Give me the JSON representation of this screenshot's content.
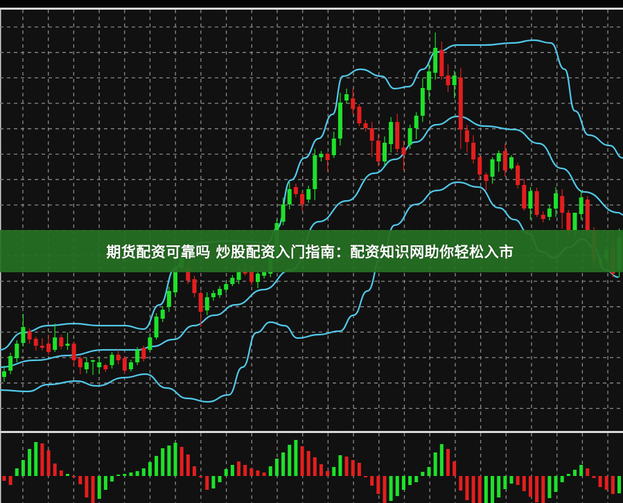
{
  "banner": {
    "title": "期货配资可靠吗 炒股配资入门指南：配资知识网助你轻松入市"
  },
  "colors": {
    "background": "#111111",
    "up": "#1ee12a",
    "down": "#e41e1e",
    "band": "#52c9ea",
    "grid": "#8a8a8a",
    "banner": "#267022"
  },
  "chart_data": [
    {
      "type": "candlestick",
      "title": "",
      "grid": true,
      "ylim": [
        0,
        610
      ],
      "candles": [
        [
          76,
          92,
          69,
          84
        ],
        [
          85,
          111,
          80,
          106
        ],
        [
          103,
          129,
          97,
          124
        ],
        [
          125,
          167,
          120,
          148
        ],
        [
          142,
          146,
          124,
          130
        ],
        [
          131,
          134,
          114,
          121
        ],
        [
          121,
          132,
          114,
          118
        ],
        [
          124,
          137,
          108,
          112
        ],
        [
          115,
          153,
          112,
          133
        ],
        [
          133,
          137,
          116,
          120
        ],
        [
          121,
          140,
          115,
          124
        ],
        [
          124,
          127,
          91,
          100
        ],
        [
          103,
          106,
          80,
          90
        ],
        [
          87,
          104,
          81,
          97
        ],
        [
          98,
          101,
          79,
          100
        ],
        [
          90,
          104,
          80,
          97
        ],
        [
          93,
          95,
          83,
          87
        ],
        [
          93,
          112,
          88,
          108
        ],
        [
          108,
          115,
          94,
          100
        ],
        [
          103,
          106,
          80,
          85
        ],
        [
          87,
          101,
          84,
          97
        ],
        [
          97,
          119,
          93,
          115
        ],
        [
          118,
          121,
          98,
          102
        ],
        [
          115,
          139,
          112,
          133
        ],
        [
          133,
          168,
          130,
          163
        ],
        [
          160,
          178,
          155,
          173
        ],
        [
          177,
          206,
          170,
          200
        ],
        [
          198,
          238,
          192,
          233
        ],
        [
          233,
          252,
          228,
          247
        ],
        [
          233,
          240,
          210,
          215
        ],
        [
          217,
          222,
          191,
          197
        ],
        [
          197,
          200,
          148,
          170
        ],
        [
          172,
          198,
          165,
          191
        ],
        [
          191,
          201,
          186,
          197
        ],
        [
          194,
          207,
          190,
          203
        ],
        [
          202,
          214,
          197,
          210
        ],
        [
          210,
          223,
          207,
          219
        ],
        [
          216,
          236,
          210,
          228
        ],
        [
          231,
          240,
          222,
          225
        ],
        [
          228,
          232,
          208,
          213
        ],
        [
          213,
          229,
          204,
          225
        ],
        [
          222,
          232,
          218,
          228
        ],
        [
          225,
          256,
          220,
          250
        ],
        [
          250,
          304,
          245,
          298
        ],
        [
          300,
          335,
          295,
          325
        ],
        [
          325,
          357,
          318,
          347
        ],
        [
          350,
          355,
          335,
          340
        ],
        [
          340,
          344,
          316,
          325
        ],
        [
          332,
          352,
          327,
          347
        ],
        [
          347,
          405,
          331,
          396
        ],
        [
          393,
          402,
          387,
          398
        ],
        [
          398,
          400,
          373,
          389
        ],
        [
          396,
          430,
          392,
          420
        ],
        [
          420,
          486,
          410,
          472
        ],
        [
          475,
          492,
          470,
          484
        ],
        [
          478,
          492,
          455,
          463
        ],
        [
          466,
          470,
          438,
          442
        ],
        [
          442,
          447,
          430,
          435
        ],
        [
          435,
          444,
          393,
          417
        ],
        [
          417,
          427,
          380,
          387
        ],
        [
          387,
          423,
          381,
          414
        ],
        [
          412,
          451,
          400,
          444
        ],
        [
          444,
          456,
          400,
          405
        ],
        [
          407,
          417,
          374,
          397
        ],
        [
          411,
          440,
          405,
          435
        ],
        [
          435,
          458,
          419,
          453
        ],
        [
          453,
          507,
          444,
          493
        ],
        [
          490,
          528,
          476,
          517
        ],
        [
          515,
          573,
          505,
          551
        ],
        [
          548,
          560,
          505,
          510
        ],
        [
          511,
          527,
          487,
          497
        ],
        [
          497,
          518,
          478,
          511
        ],
        [
          508,
          522,
          405,
          433
        ],
        [
          432,
          440,
          400,
          415
        ],
        [
          414,
          425,
          384,
          390
        ],
        [
          393,
          397,
          360,
          368
        ],
        [
          368,
          371,
          345,
          359
        ],
        [
          365,
          393,
          355,
          390
        ],
        [
          387,
          403,
          372,
          399
        ],
        [
          402,
          413,
          365,
          374
        ],
        [
          377,
          396,
          375,
          393
        ],
        [
          381,
          385,
          348,
          353
        ],
        [
          353,
          362,
          316,
          319
        ],
        [
          319,
          350,
          303,
          344
        ],
        [
          344,
          349,
          307,
          310
        ],
        [
          310,
          315,
          299,
          304
        ],
        [
          307,
          325,
          302,
          319
        ],
        [
          319,
          350,
          307,
          341
        ],
        [
          337,
          347,
          290,
          313
        ],
        [
          313,
          317,
          275,
          287
        ],
        [
          287,
          313,
          277,
          313
        ],
        [
          311,
          345,
          303,
          335
        ],
        [
          332,
          337,
          278,
          287
        ],
        [
          287,
          292,
          234,
          243
        ],
        [
          240,
          252,
          233,
          247
        ],
        [
          246,
          264,
          240,
          259
        ],
        [
          262,
          279,
          220,
          225
        ],
        [
          230,
          290,
          220,
          277
        ]
      ],
      "bands": {
        "upper": [
          [
            -0.7,
            115
          ],
          [
            3,
            140
          ],
          [
            7,
            150
          ],
          [
            11,
            153
          ],
          [
            15,
            150
          ],
          [
            19,
            150
          ],
          [
            22,
            145
          ],
          [
            24.5,
            180
          ],
          [
            27,
            233
          ],
          [
            29,
            262
          ],
          [
            31,
            270
          ],
          [
            35.4,
            272
          ],
          [
            41.6,
            270
          ],
          [
            43,
            290
          ],
          [
            45.2,
            360
          ],
          [
            47.4,
            392
          ],
          [
            49.6,
            420
          ],
          [
            51.8,
            455
          ],
          [
            53.4,
            510
          ],
          [
            56.2,
            520
          ],
          [
            59.5,
            510
          ],
          [
            61.6,
            492
          ],
          [
            63.8,
            495
          ],
          [
            66,
            520
          ],
          [
            68.2,
            545
          ],
          [
            71.5,
            555
          ],
          [
            75.8,
            555
          ],
          [
            80.2,
            558
          ],
          [
            83.5,
            562
          ],
          [
            86.2,
            558
          ],
          [
            88.4,
            520
          ],
          [
            90,
            460
          ],
          [
            92.2,
            425
          ],
          [
            95.5,
            410
          ],
          [
            97.6,
            392
          ]
        ],
        "middle": [
          [
            -0.7,
            90
          ],
          [
            4.8,
            100
          ],
          [
            10.3,
            107
          ],
          [
            15.7,
            115
          ],
          [
            21.2,
            115
          ],
          [
            23.4,
            120
          ],
          [
            26.7,
            130
          ],
          [
            29.9,
            150
          ],
          [
            33.2,
            165
          ],
          [
            36.5,
            180
          ],
          [
            40.9,
            202
          ],
          [
            45.2,
            230
          ],
          [
            49.6,
            300
          ],
          [
            54,
            330
          ],
          [
            58.4,
            370
          ],
          [
            61.6,
            390
          ],
          [
            64.9,
            415
          ],
          [
            68.2,
            440
          ],
          [
            71.5,
            452
          ],
          [
            75.8,
            438
          ],
          [
            80.5,
            433
          ],
          [
            84.3,
            413
          ],
          [
            87.9,
            377
          ],
          [
            91.5,
            343
          ],
          [
            96.9,
            313
          ],
          [
            97.6,
            310
          ]
        ],
        "lower": [
          [
            -0.7,
            57
          ],
          [
            3.7,
            55
          ],
          [
            7,
            65
          ],
          [
            11.4,
            70
          ],
          [
            14.6,
            63
          ],
          [
            19,
            75
          ],
          [
            22.3,
            80
          ],
          [
            25.6,
            60
          ],
          [
            28.9,
            45
          ],
          [
            32.1,
            40
          ],
          [
            35.4,
            50
          ],
          [
            37.6,
            90
          ],
          [
            39.8,
            140
          ],
          [
            42,
            155
          ],
          [
            44.2,
            150
          ],
          [
            46.3,
            132
          ],
          [
            49.6,
            137
          ],
          [
            52.9,
            142
          ],
          [
            55.1,
            165
          ],
          [
            57.3,
            200
          ],
          [
            59.5,
            250
          ],
          [
            61.6,
            295
          ],
          [
            64.9,
            325
          ],
          [
            68.2,
            345
          ],
          [
            71.5,
            357
          ],
          [
            74.8,
            350
          ],
          [
            78,
            320
          ],
          [
            80.5,
            303
          ],
          [
            82.7,
            283
          ],
          [
            84.6,
            257
          ],
          [
            86.8,
            248
          ],
          [
            89,
            263
          ],
          [
            91.2,
            275
          ],
          [
            93,
            263
          ],
          [
            94.8,
            230
          ],
          [
            96.9,
            220
          ]
        ]
      }
    },
    {
      "type": "bar",
      "title": "",
      "grid": true,
      "values": [
        -7,
        -13,
        11,
        23,
        39,
        49,
        47,
        37,
        18,
        8,
        3,
        -1,
        -12,
        -31,
        -45,
        -33,
        -20,
        -8,
        2,
        3,
        5,
        7,
        11,
        20,
        29,
        40,
        44,
        48,
        42,
        31,
        14,
        -2,
        -20,
        -18,
        -9,
        10,
        16,
        21,
        16,
        11,
        8,
        5,
        14,
        25,
        34,
        45,
        52,
        43,
        36,
        27,
        17,
        7,
        13,
        30,
        28,
        23,
        19,
        -2,
        -14,
        -26,
        -40,
        -36,
        -29,
        -20,
        -13,
        -9,
        6,
        13,
        34,
        46,
        39,
        21,
        -21,
        -35,
        -40,
        -40,
        -40,
        -40,
        -31,
        -19,
        -11,
        -13,
        -22,
        -30,
        -38,
        -40,
        -32,
        -23,
        -9,
        3,
        9,
        16,
        11,
        -3,
        -16,
        -20,
        -26,
        -25
      ],
      "colors": [
        "down",
        "down",
        "up",
        "up",
        "up",
        "up",
        "down",
        "down",
        "down",
        "down",
        "up",
        "down",
        "down",
        "down",
        "down",
        "up",
        "up",
        "up",
        "up",
        "up",
        "up",
        "up",
        "up",
        "up",
        "up",
        "up",
        "up",
        "up",
        "down",
        "down",
        "down",
        "down",
        "down",
        "up",
        "up",
        "up",
        "up",
        "down",
        "down",
        "down",
        "down",
        "down",
        "up",
        "up",
        "up",
        "up",
        "up",
        "down",
        "down",
        "down",
        "down",
        "down",
        "up",
        "up",
        "down",
        "down",
        "down",
        "down",
        "down",
        "down",
        "down",
        "up",
        "up",
        "up",
        "up",
        "up",
        "up",
        "up",
        "up",
        "up",
        "down",
        "down",
        "down",
        "down",
        "down",
        "down",
        "up",
        "up",
        "up",
        "up",
        "up",
        "down",
        "down",
        "down",
        "down",
        "down",
        "up",
        "up",
        "up",
        "up",
        "up",
        "up",
        "down",
        "down",
        "down",
        "down",
        "down",
        "up"
      ]
    }
  ]
}
